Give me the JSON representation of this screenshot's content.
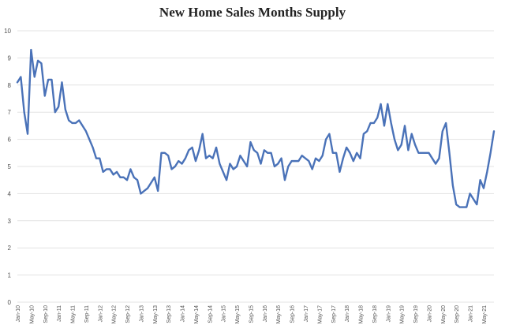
{
  "chart_data": {
    "type": "line",
    "title": "New Home Sales Months Supply",
    "xlabel": "",
    "ylabel": "",
    "ylim": [
      0,
      10
    ],
    "yticks": [
      0,
      1,
      2,
      3,
      4,
      5,
      6,
      7,
      8,
      9,
      10
    ],
    "grid": true,
    "legend": "none",
    "line_color": "#4a72b8",
    "x_tick_labels": [
      "Jan-10",
      "May-10",
      "Sep-10",
      "Jan-11",
      "May-11",
      "Sep-11",
      "Jan-12",
      "May-12",
      "Sep-12",
      "Jan-13",
      "May-13",
      "Sep-13",
      "Jan-14",
      "May-14",
      "Sep-14",
      "Jan-15",
      "May-15",
      "Sep-15",
      "Jan-16",
      "May-16",
      "Sep-16",
      "Jan-17",
      "May-17",
      "Sep-17",
      "Jan-18",
      "May-18",
      "Sep-18",
      "Jan-19",
      "May-19",
      "Sep-19",
      "Jan-20",
      "May-20",
      "Sep-20",
      "Jan-21",
      "May-21"
    ],
    "series": [
      {
        "values": [
          8.1,
          8.3,
          7.0,
          6.2,
          9.3,
          8.3,
          8.9,
          8.8,
          7.6,
          8.2,
          8.2,
          7.0,
          7.2,
          8.1,
          7.1,
          6.7,
          6.6,
          6.6,
          6.7,
          6.5,
          6.3,
          6.0,
          5.7,
          5.3,
          5.3,
          4.8,
          4.9,
          4.9,
          4.7,
          4.8,
          4.6,
          4.6,
          4.5,
          4.9,
          4.6,
          4.5,
          4.0,
          4.1,
          4.2,
          4.4,
          4.6,
          4.1,
          5.5,
          5.5,
          5.4,
          4.9,
          5.0,
          5.2,
          5.1,
          5.3,
          5.6,
          5.7,
          5.2,
          5.6,
          6.2,
          5.3,
          5.4,
          5.3,
          5.7,
          5.1,
          4.8,
          4.5,
          5.1,
          4.9,
          5.0,
          5.4,
          5.2,
          5.0,
          5.9,
          5.6,
          5.5,
          5.1,
          5.6,
          5.5,
          5.5,
          5.0,
          5.1,
          5.3,
          4.5,
          5.0,
          5.2,
          5.2,
          5.2,
          5.4,
          5.3,
          5.2,
          4.9,
          5.3,
          5.2,
          5.4,
          6.0,
          6.2,
          5.5,
          5.5,
          4.8,
          5.3,
          5.7,
          5.5,
          5.2,
          5.5,
          5.3,
          6.2,
          6.3,
          6.6,
          6.6,
          6.8,
          7.3,
          6.5,
          7.3,
          6.6,
          6.0,
          5.6,
          5.8,
          6.5,
          5.6,
          6.2,
          5.8,
          5.5,
          5.5,
          5.5,
          5.5,
          5.3,
          5.1,
          5.3,
          6.3,
          6.6,
          5.5,
          4.3,
          3.6,
          3.5,
          3.5,
          3.5,
          4.0,
          3.8,
          3.6,
          4.5,
          4.2,
          4.8,
          5.5,
          6.3
        ]
      }
    ]
  }
}
